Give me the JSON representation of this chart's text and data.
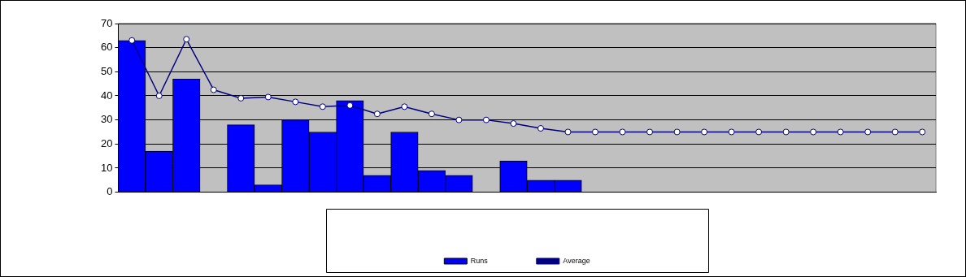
{
  "chart_data": {
    "type": "bar",
    "categories": [
      null,
      null,
      null,
      null,
      null,
      null,
      null,
      null,
      null,
      null,
      null,
      null,
      null,
      null,
      null,
      null,
      null,
      null,
      null,
      null,
      null,
      null,
      null,
      null,
      null,
      null,
      null,
      null,
      null,
      null
    ],
    "series": [
      {
        "name": "Runs",
        "color": "#0000ff",
        "values": [
          63,
          17,
          47,
          0,
          28,
          3,
          30,
          25,
          38,
          7,
          25,
          9,
          7,
          0,
          13,
          5,
          5,
          null,
          null,
          null,
          null,
          null,
          null,
          null,
          null,
          null,
          null,
          null,
          null,
          null
        ]
      },
      {
        "name": "Average",
        "type": "line",
        "color": "#000080",
        "values": [
          63,
          40,
          63.5,
          42.5,
          39,
          39.5,
          37.5,
          35.5,
          36,
          32.5,
          35.5,
          32.5,
          30,
          30,
          28.5,
          26.5,
          25,
          25,
          25,
          25,
          25,
          25,
          25,
          25,
          25,
          25,
          25,
          25,
          25,
          25
        ]
      }
    ],
    "ylim": [
      0,
      70
    ],
    "yticks": [
      0,
      10,
      20,
      30,
      40,
      50,
      60,
      70
    ],
    "grid": "y",
    "legend": "bottom",
    "marker": "circle",
    "line_style": "solid"
  }
}
